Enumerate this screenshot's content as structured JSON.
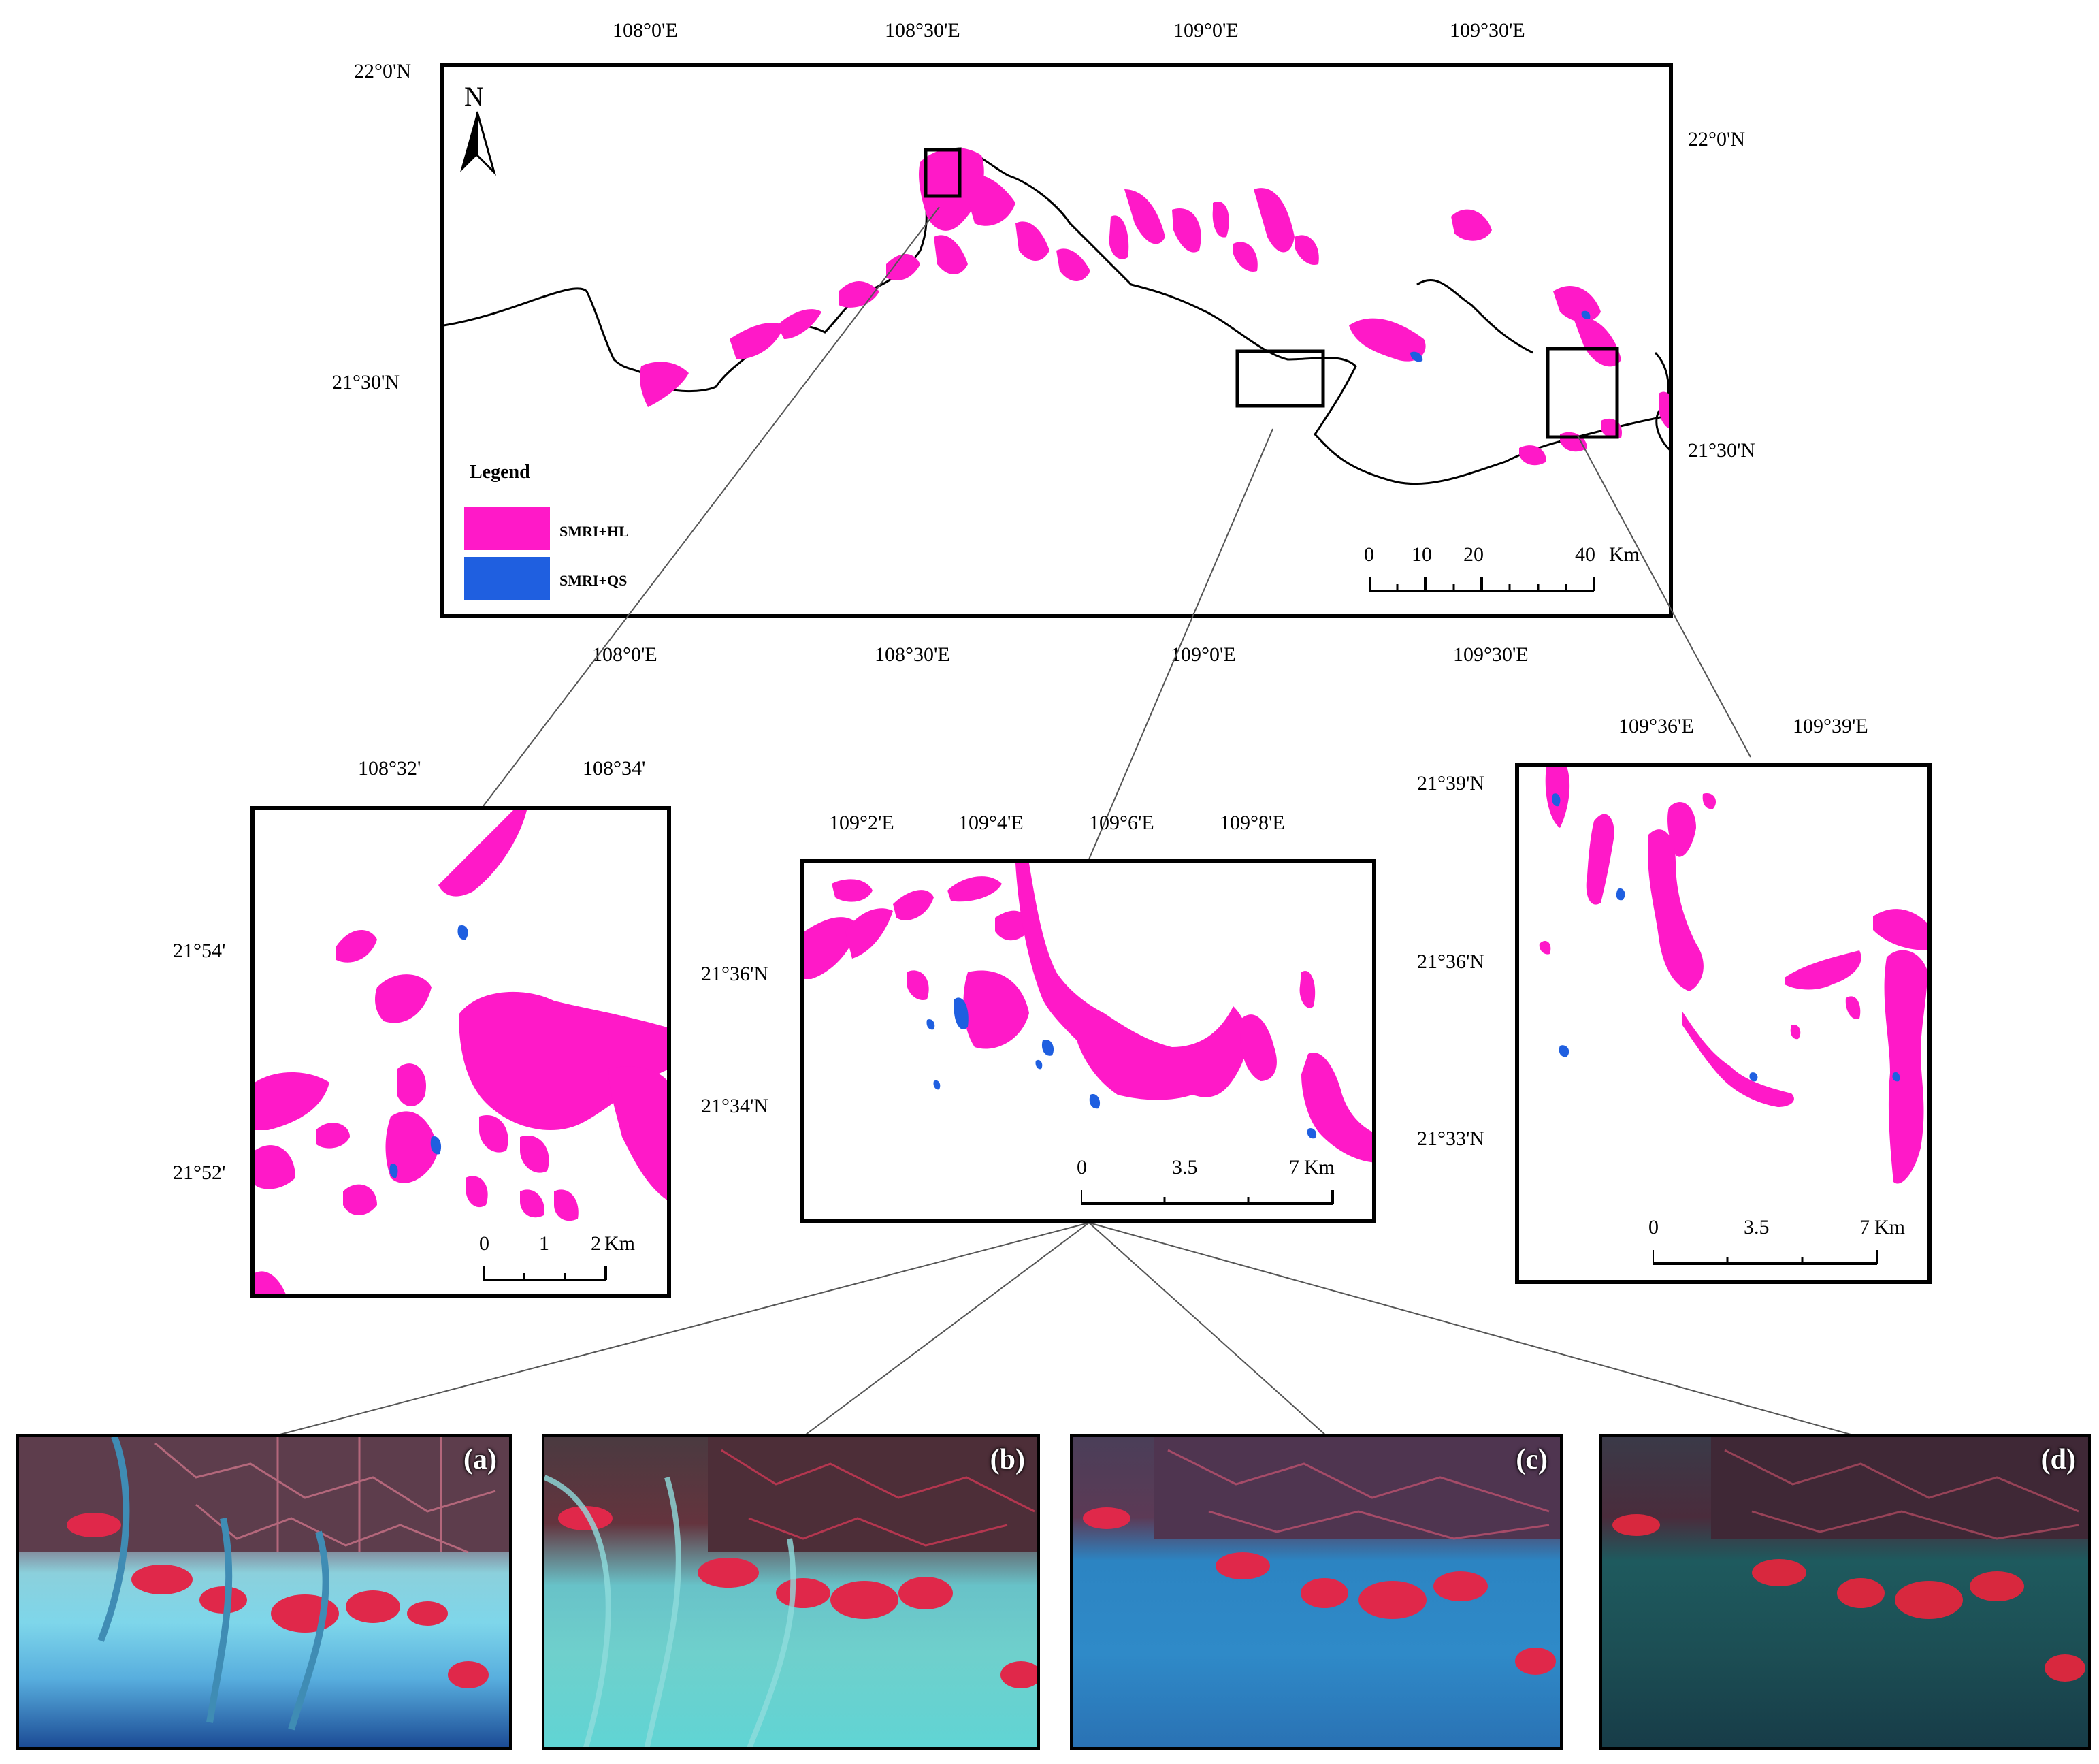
{
  "main_map": {
    "top_lon_labels": [
      "108°0'E",
      "108°30'E",
      "109°0'E",
      "109°30'E"
    ],
    "bottom_lon_labels": [
      "108°0'E",
      "108°30'E",
      "109°0'E",
      "109°30'E"
    ],
    "left_lat_labels": [
      "22°0'N",
      "21°30'N"
    ],
    "right_lat_labels": [
      "22°0'N",
      "21°30'N"
    ],
    "north_arrow": "N",
    "legend": {
      "title": "Legend",
      "items": [
        {
          "label": "SMRI+HL",
          "color": "#ff19c8"
        },
        {
          "label": "SMRI+QS",
          "color": "#1f5fe0"
        }
      ]
    },
    "scale": {
      "ticks": [
        "0",
        "10",
        "20",
        "40"
      ],
      "unit": "Km"
    }
  },
  "inset_left": {
    "lon_labels": [
      "108°32'",
      "108°34'"
    ],
    "lat_labels": [
      "21°54'",
      "21°52'"
    ],
    "scale": {
      "ticks": [
        "0",
        "1",
        "2"
      ],
      "unit": "Km"
    }
  },
  "inset_middle": {
    "lon_labels": [
      "109°2'E",
      "109°4'E",
      "109°6'E",
      "109°8'E"
    ],
    "lat_labels": [
      "21°36'N",
      "21°34'N"
    ],
    "scale": {
      "ticks": [
        "0",
        "3.5",
        "7"
      ],
      "unit": "Km"
    }
  },
  "inset_right": {
    "lon_labels": [
      "109°36'E",
      "109°39'E"
    ],
    "lat_labels": [
      "21°39'N",
      "21°36'N",
      "21°33'N"
    ],
    "scale": {
      "ticks": [
        "0",
        "3.5",
        "7"
      ],
      "unit": "Km"
    }
  },
  "photos": [
    {
      "label": "(a)"
    },
    {
      "label": "(b)"
    },
    {
      "label": "(c)"
    },
    {
      "label": "(d)"
    }
  ],
  "colors": {
    "hl": "#ff19c8",
    "qs": "#1f5fe0",
    "coastline": "#000000"
  }
}
